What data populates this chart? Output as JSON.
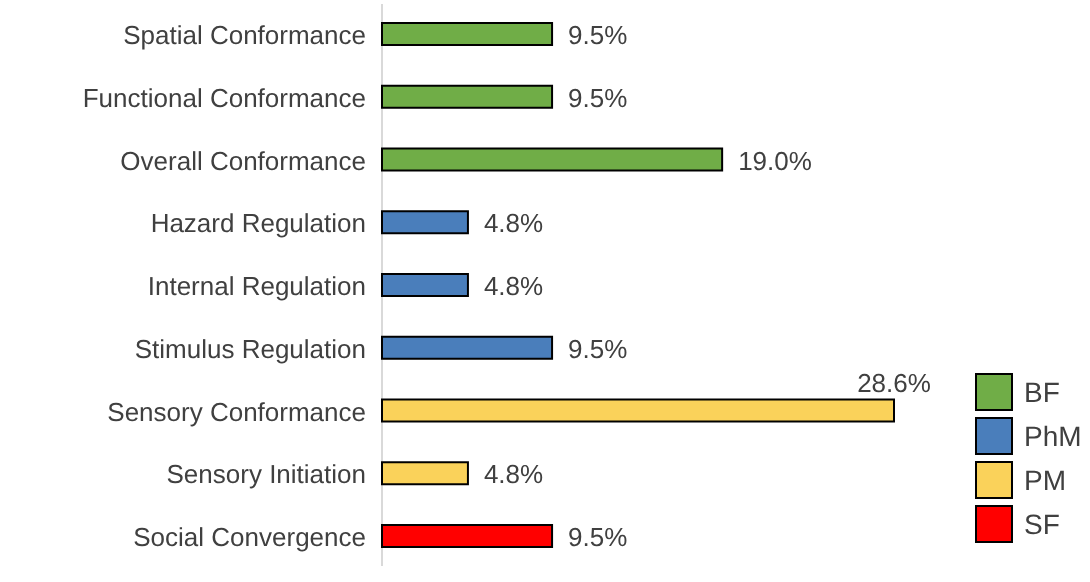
{
  "chart_data": {
    "type": "bar",
    "orientation": "horizontal",
    "categories": [
      "Spatial Conformance",
      "Functional Conformance",
      "Overall Conformance",
      "Hazard Regulation",
      "Internal Regulation",
      "Stimulus Regulation",
      "Sensory Conformance",
      "Sensory Initiation",
      "Social Convergence"
    ],
    "series": [
      {
        "name": "BF",
        "color": "#70ad47",
        "values": [
          9.5,
          9.5,
          19.0,
          null,
          null,
          null,
          null,
          null,
          null
        ],
        "value_labels": [
          "9.5%",
          "9.5%",
          "19.0%",
          null,
          null,
          null,
          null,
          null,
          null
        ]
      },
      {
        "name": "PhM",
        "color": "#4a7ebb",
        "values": [
          null,
          null,
          null,
          4.8,
          4.8,
          9.5,
          null,
          null,
          null
        ],
        "value_labels": [
          null,
          null,
          null,
          "4.8%",
          "4.8%",
          "9.5%",
          null,
          null,
          null
        ]
      },
      {
        "name": "PM",
        "color": "#fad25a",
        "values": [
          null,
          null,
          null,
          null,
          null,
          null,
          28.6,
          4.8,
          null
        ],
        "value_labels": [
          null,
          null,
          null,
          null,
          null,
          null,
          "28.6%",
          "4.8%",
          null
        ]
      },
      {
        "name": "SF",
        "color": "#ff0000",
        "values": [
          null,
          null,
          null,
          null,
          null,
          null,
          null,
          null,
          9.5
        ],
        "value_labels": [
          null,
          null,
          null,
          null,
          null,
          null,
          null,
          null,
          "9.5%"
        ]
      }
    ],
    "legend": "right"
  }
}
